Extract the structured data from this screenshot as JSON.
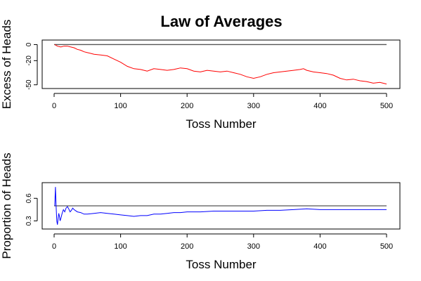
{
  "title": "Law of Averages",
  "chart_data": [
    {
      "type": "line",
      "xlabel": "Toss Number",
      "ylabel": "Excess of Heads",
      "xlim": [
        0,
        500
      ],
      "ylim": [
        -52,
        3
      ],
      "xticks": [
        "0",
        "100",
        "200",
        "300",
        "400",
        "500"
      ],
      "yticks": [
        "0",
        "-20",
        "-50"
      ],
      "reference_line": 0,
      "series": [
        {
          "color": "#ff0000",
          "x": [
            1,
            5,
            10,
            15,
            20,
            25,
            30,
            35,
            40,
            45,
            50,
            55,
            60,
            70,
            80,
            90,
            100,
            110,
            120,
            130,
            140,
            150,
            160,
            170,
            180,
            190,
            200,
            210,
            220,
            230,
            240,
            250,
            260,
            270,
            280,
            290,
            300,
            310,
            320,
            330,
            340,
            350,
            360,
            370,
            375,
            380,
            390,
            400,
            410,
            420,
            430,
            440,
            450,
            460,
            470,
            480,
            490,
            500
          ],
          "values": [
            0,
            -2,
            -3,
            -2,
            -2,
            -3,
            -4,
            -6,
            -7,
            -9,
            -10,
            -11,
            -12,
            -13,
            -14,
            -18,
            -22,
            -27,
            -30,
            -31,
            -33,
            -30,
            -31,
            -32,
            -31,
            -29,
            -30,
            -33,
            -34,
            -32,
            -33,
            -34,
            -33,
            -35,
            -37,
            -40,
            -42,
            -40,
            -37,
            -35,
            -34,
            -33,
            -32,
            -31,
            -30,
            -32,
            -34,
            -35,
            -36,
            -38,
            -42,
            -44,
            -43,
            -45,
            -46,
            -48,
            -47,
            -49
          ]
        }
      ]
    },
    {
      "type": "line",
      "xlabel": "Toss Number",
      "ylabel": "Proportion of Heads",
      "xlim": [
        0,
        500
      ],
      "ylim": [
        0.22,
        0.78
      ],
      "xticks": [
        "0",
        "100",
        "200",
        "300",
        "400",
        "500"
      ],
      "yticks": [
        "0.3",
        "0.6"
      ],
      "reference_line": 0.5,
      "series": [
        {
          "color": "#0000ff",
          "x": [
            1,
            2,
            3,
            4,
            5,
            6,
            7,
            8,
            9,
            10,
            12,
            14,
            16,
            18,
            20,
            22,
            24,
            26,
            28,
            30,
            35,
            40,
            45,
            50,
            60,
            70,
            80,
            90,
            100,
            110,
            120,
            130,
            140,
            150,
            160,
            170,
            180,
            190,
            200,
            220,
            240,
            260,
            280,
            300,
            320,
            340,
            360,
            380,
            400,
            420,
            440,
            460,
            480,
            500
          ],
          "values": [
            0.5,
            0.75,
            0.5,
            0.3,
            0.25,
            0.33,
            0.4,
            0.36,
            0.3,
            0.33,
            0.4,
            0.45,
            0.42,
            0.47,
            0.49,
            0.46,
            0.42,
            0.44,
            0.47,
            0.45,
            0.42,
            0.41,
            0.39,
            0.39,
            0.4,
            0.41,
            0.4,
            0.39,
            0.38,
            0.37,
            0.36,
            0.37,
            0.37,
            0.39,
            0.39,
            0.4,
            0.41,
            0.41,
            0.42,
            0.42,
            0.43,
            0.43,
            0.43,
            0.43,
            0.44,
            0.44,
            0.45,
            0.46,
            0.45,
            0.45,
            0.45,
            0.45,
            0.45,
            0.45
          ]
        }
      ]
    }
  ]
}
